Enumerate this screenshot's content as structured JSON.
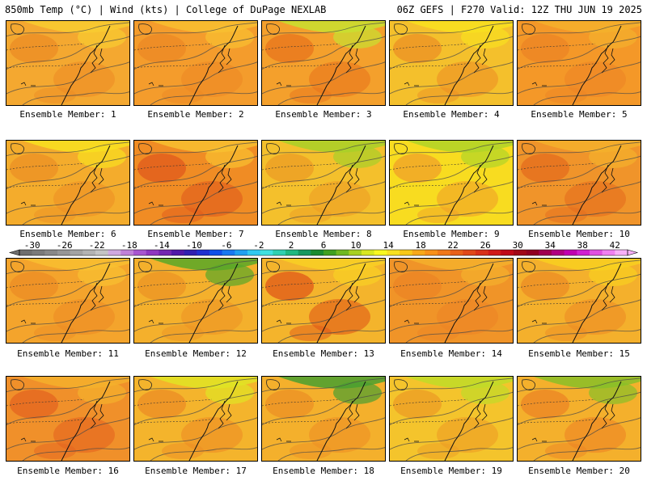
{
  "header": {
    "left": "850mb Temp (°C) | Wind (kts) | College of DuPage NEXLAB",
    "right": "06Z GEFS | F270 Valid: 12Z THU JUN 19 2025"
  },
  "colorbar": {
    "labels": [
      "-30",
      "-26",
      "-22",
      "-18",
      "-14",
      "-10",
      "-6",
      "-2",
      "2",
      "6",
      "10",
      "14",
      "18",
      "22",
      "26",
      "30",
      "34",
      "38",
      "42"
    ],
    "colors": [
      "#6e6e6e",
      "#7a7a7a",
      "#888888",
      "#969696",
      "#a3a3a3",
      "#b3b3b3",
      "#c4c4c4",
      "#cfa8e0",
      "#c080d8",
      "#a855d0",
      "#8e36c0",
      "#7326b0",
      "#5018a8",
      "#3020b0",
      "#2030d0",
      "#1050e8",
      "#1878f0",
      "#20a0f0",
      "#30c8f0",
      "#40e0e0",
      "#30d0b0",
      "#20b880",
      "#189860",
      "#1a8a30",
      "#40a020",
      "#70b820",
      "#a8d020",
      "#d8e820",
      "#f8f820",
      "#f8e020",
      "#f8c818",
      "#f8a818",
      "#f89018",
      "#f07818",
      "#e86018",
      "#e04818",
      "#d83018",
      "#d01818",
      "#c00818",
      "#a00818",
      "#900020",
      "#a00050",
      "#b00080",
      "#c000b0",
      "#d020d0",
      "#e050e0",
      "#f080f0",
      "#f8b0f8"
    ]
  },
  "members": [
    {
      "label": "Ensemble Member: 1",
      "base": "#f4a830",
      "warm": "#ec8c24",
      "cool": "#f8cc30"
    },
    {
      "label": "Ensemble Member: 2",
      "base": "#f49c2c",
      "warm": "#ec8824",
      "cool": "#f8c030"
    },
    {
      "label": "Ensemble Member: 3",
      "base": "#f4a02c",
      "warm": "#e8741c",
      "cool": "#c8e030"
    },
    {
      "label": "Ensemble Member: 4",
      "base": "#f4c02c",
      "warm": "#ec9024",
      "cool": "#f8e020"
    },
    {
      "label": "Ensemble Member: 5",
      "base": "#f49828",
      "warm": "#ec8424",
      "cool": "#f4b02c"
    },
    {
      "label": "Ensemble Member: 6",
      "base": "#f4ac2c",
      "warm": "#ec9024",
      "cool": "#f8e020"
    },
    {
      "label": "Ensemble Member: 7",
      "base": "#f08c24",
      "warm": "#e05a1c",
      "cool": "#f8c030"
    },
    {
      "label": "Ensemble Member: 8",
      "base": "#f4c02c",
      "warm": "#ec9c24",
      "cool": "#a8d028"
    },
    {
      "label": "Ensemble Member: 9",
      "base": "#f8dc20",
      "warm": "#f0a028",
      "cool": "#b0d428"
    },
    {
      "label": "Ensemble Member: 10",
      "base": "#f0942a",
      "warm": "#e46c1e",
      "cool": "#f4b02c"
    },
    {
      "label": "Ensemble Member: 11",
      "base": "#f4a42c",
      "warm": "#ec8c24",
      "cool": "#f8c030"
    },
    {
      "label": "Ensemble Member: 12",
      "base": "#f4b02c",
      "warm": "#ec9424",
      "cool": "#58a828"
    },
    {
      "label": "Ensemble Member: 13",
      "base": "#f4b42c",
      "warm": "#e05818",
      "cool": "#f8d024"
    },
    {
      "label": "Ensemble Member: 14",
      "base": "#f09428",
      "warm": "#ec8424",
      "cool": "#f4b02c"
    },
    {
      "label": "Ensemble Member: 15",
      "base": "#f4b02c",
      "warm": "#ec8c24",
      "cool": "#f8d020"
    },
    {
      "label": "Ensemble Member: 16",
      "base": "#f0902a",
      "warm": "#e46420",
      "cool": "#f4b02c"
    },
    {
      "label": "Ensemble Member: 17",
      "base": "#f4b42c",
      "warm": "#ec8c24",
      "cool": "#e0e424"
    },
    {
      "label": "Ensemble Member: 18",
      "base": "#f4b02c",
      "warm": "#ec9024",
      "cool": "#48a030"
    },
    {
      "label": "Ensemble Member: 19",
      "base": "#f4c42c",
      "warm": "#ec9c24",
      "cool": "#c0dc28"
    },
    {
      "label": "Ensemble Member: 20",
      "base": "#f4b02c",
      "warm": "#ec8424",
      "cool": "#88c028"
    }
  ]
}
